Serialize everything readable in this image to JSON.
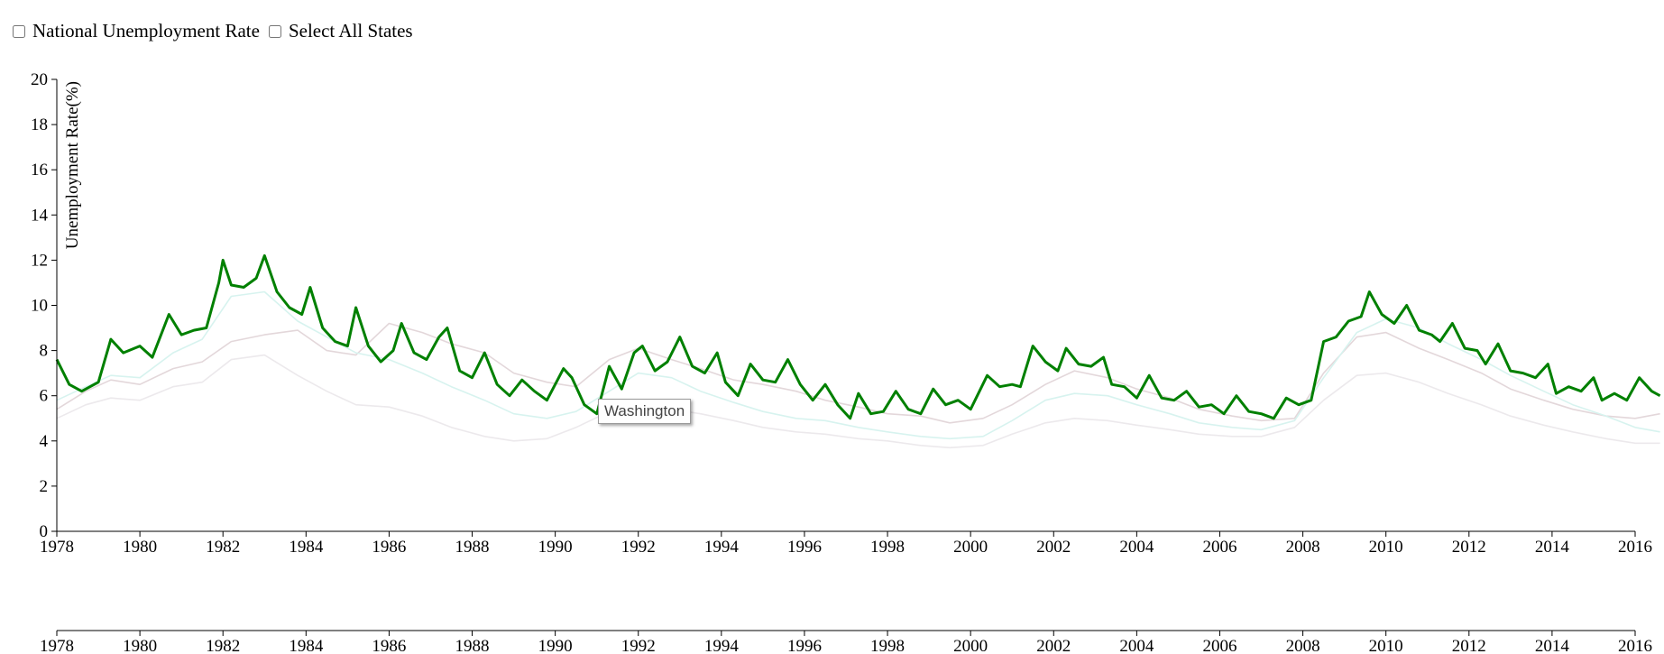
{
  "controls": {
    "national_label": "National Unemployment Rate",
    "select_all_label": "Select All States"
  },
  "tooltip": {
    "text": "Washington"
  },
  "chart_data": {
    "type": "line",
    "title": "",
    "ylabel": "Unemployment Rate(%)",
    "xlabel": "",
    "xlim": [
      1978,
      2016
    ],
    "ylim": [
      0,
      20
    ],
    "x_ticks": [
      1978,
      1980,
      1982,
      1984,
      1986,
      1988,
      1990,
      1992,
      1994,
      1996,
      1998,
      2000,
      2002,
      2004,
      2006,
      2008,
      2010,
      2012,
      2014,
      2016
    ],
    "y_ticks": [
      0,
      2,
      4,
      6,
      8,
      10,
      12,
      14,
      16,
      18,
      20
    ],
    "grid": false,
    "legend": "none",
    "highlighted_series": "Washington",
    "series": [
      {
        "name": "Washington",
        "color": "#008000",
        "points": [
          [
            1978.0,
            7.6
          ],
          [
            1978.3,
            6.5
          ],
          [
            1978.6,
            6.2
          ],
          [
            1979.0,
            6.6
          ],
          [
            1979.3,
            8.5
          ],
          [
            1979.6,
            7.9
          ],
          [
            1980.0,
            8.2
          ],
          [
            1980.3,
            7.7
          ],
          [
            1980.7,
            9.6
          ],
          [
            1981.0,
            8.7
          ],
          [
            1981.3,
            8.9
          ],
          [
            1981.6,
            9.0
          ],
          [
            1981.9,
            11.0
          ],
          [
            1982.0,
            12.0
          ],
          [
            1982.2,
            10.9
          ],
          [
            1982.5,
            10.8
          ],
          [
            1982.8,
            11.2
          ],
          [
            1983.0,
            12.2
          ],
          [
            1983.3,
            10.6
          ],
          [
            1983.6,
            9.9
          ],
          [
            1983.9,
            9.6
          ],
          [
            1984.1,
            10.8
          ],
          [
            1984.4,
            9.0
          ],
          [
            1984.7,
            8.4
          ],
          [
            1985.0,
            8.2
          ],
          [
            1985.2,
            9.9
          ],
          [
            1985.5,
            8.2
          ],
          [
            1985.8,
            7.5
          ],
          [
            1986.1,
            8.0
          ],
          [
            1986.3,
            9.2
          ],
          [
            1986.6,
            7.9
          ],
          [
            1986.9,
            7.6
          ],
          [
            1987.2,
            8.6
          ],
          [
            1987.4,
            9.0
          ],
          [
            1987.7,
            7.1
          ],
          [
            1988.0,
            6.8
          ],
          [
            1988.3,
            7.9
          ],
          [
            1988.6,
            6.5
          ],
          [
            1988.9,
            6.0
          ],
          [
            1989.2,
            6.7
          ],
          [
            1989.5,
            6.2
          ],
          [
            1989.8,
            5.8
          ],
          [
            1990.2,
            7.2
          ],
          [
            1990.4,
            6.8
          ],
          [
            1990.7,
            5.6
          ],
          [
            1991.0,
            5.2
          ],
          [
            1991.3,
            7.3
          ],
          [
            1991.6,
            6.3
          ],
          [
            1991.9,
            7.9
          ],
          [
            1992.1,
            8.2
          ],
          [
            1992.4,
            7.1
          ],
          [
            1992.7,
            7.5
          ],
          [
            1993.0,
            8.6
          ],
          [
            1993.3,
            7.3
          ],
          [
            1993.6,
            7.0
          ],
          [
            1993.9,
            7.9
          ],
          [
            1994.1,
            6.6
          ],
          [
            1994.4,
            6.0
          ],
          [
            1994.7,
            7.4
          ],
          [
            1995.0,
            6.7
          ],
          [
            1995.3,
            6.6
          ],
          [
            1995.6,
            7.6
          ],
          [
            1995.9,
            6.5
          ],
          [
            1996.2,
            5.8
          ],
          [
            1996.5,
            6.5
          ],
          [
            1996.8,
            5.6
          ],
          [
            1997.1,
            5.0
          ],
          [
            1997.3,
            6.1
          ],
          [
            1997.6,
            5.2
          ],
          [
            1997.9,
            5.3
          ],
          [
            1998.2,
            6.2
          ],
          [
            1998.5,
            5.4
          ],
          [
            1998.8,
            5.2
          ],
          [
            1999.1,
            6.3
          ],
          [
            1999.4,
            5.6
          ],
          [
            1999.7,
            5.8
          ],
          [
            2000.0,
            5.4
          ],
          [
            2000.4,
            6.9
          ],
          [
            2000.7,
            6.4
          ],
          [
            2001.0,
            6.5
          ],
          [
            2001.2,
            6.4
          ],
          [
            2001.5,
            8.2
          ],
          [
            2001.8,
            7.5
          ],
          [
            2002.1,
            7.1
          ],
          [
            2002.3,
            8.1
          ],
          [
            2002.6,
            7.4
          ],
          [
            2002.9,
            7.3
          ],
          [
            2003.2,
            7.7
          ],
          [
            2003.4,
            6.5
          ],
          [
            2003.7,
            6.4
          ],
          [
            2004.0,
            5.9
          ],
          [
            2004.3,
            6.9
          ],
          [
            2004.6,
            5.9
          ],
          [
            2004.9,
            5.8
          ],
          [
            2005.2,
            6.2
          ],
          [
            2005.5,
            5.5
          ],
          [
            2005.8,
            5.6
          ],
          [
            2006.1,
            5.2
          ],
          [
            2006.4,
            6.0
          ],
          [
            2006.7,
            5.3
          ],
          [
            2007.0,
            5.2
          ],
          [
            2007.3,
            5.0
          ],
          [
            2007.6,
            5.9
          ],
          [
            2007.9,
            5.6
          ],
          [
            2008.2,
            5.8
          ],
          [
            2008.5,
            8.4
          ],
          [
            2008.8,
            8.6
          ],
          [
            2009.1,
            9.3
          ],
          [
            2009.4,
            9.5
          ],
          [
            2009.6,
            10.6
          ],
          [
            2009.9,
            9.6
          ],
          [
            2010.2,
            9.2
          ],
          [
            2010.5,
            10.0
          ],
          [
            2010.8,
            8.9
          ],
          [
            2011.1,
            8.7
          ],
          [
            2011.3,
            8.4
          ],
          [
            2011.6,
            9.2
          ],
          [
            2011.9,
            8.1
          ],
          [
            2012.2,
            8.0
          ],
          [
            2012.4,
            7.4
          ],
          [
            2012.7,
            8.3
          ],
          [
            2013.0,
            7.1
          ],
          [
            2013.3,
            7.0
          ],
          [
            2013.6,
            6.8
          ],
          [
            2013.9,
            7.4
          ],
          [
            2014.1,
            6.1
          ],
          [
            2014.4,
            6.4
          ],
          [
            2014.7,
            6.2
          ],
          [
            2015.0,
            6.8
          ],
          [
            2015.2,
            5.8
          ],
          [
            2015.5,
            6.1
          ],
          [
            2015.8,
            5.8
          ],
          [
            2016.1,
            6.8
          ],
          [
            2016.4,
            6.2
          ],
          [
            2016.6,
            6.0
          ]
        ]
      },
      {
        "name": "",
        "color": "#e3d7da",
        "points": [
          [
            1978.0,
            5.4
          ],
          [
            1978.7,
            6.2
          ],
          [
            1979.3,
            6.7
          ],
          [
            1980.0,
            6.5
          ],
          [
            1980.8,
            7.2
          ],
          [
            1981.5,
            7.5
          ],
          [
            1982.2,
            8.4
          ],
          [
            1983.0,
            8.7
          ],
          [
            1983.8,
            8.9
          ],
          [
            1984.5,
            8.0
          ],
          [
            1985.2,
            7.8
          ],
          [
            1986.0,
            9.2
          ],
          [
            1986.8,
            8.8
          ],
          [
            1987.5,
            8.3
          ],
          [
            1988.3,
            7.9
          ],
          [
            1989.0,
            7.0
          ],
          [
            1989.8,
            6.6
          ],
          [
            1990.5,
            6.4
          ],
          [
            1991.3,
            7.6
          ],
          [
            1992.0,
            8.1
          ],
          [
            1992.8,
            7.6
          ],
          [
            1993.5,
            7.2
          ],
          [
            1994.3,
            6.7
          ],
          [
            1995.0,
            6.5
          ],
          [
            1995.8,
            6.2
          ],
          [
            1996.5,
            5.8
          ],
          [
            1997.3,
            5.5
          ],
          [
            1998.0,
            5.2
          ],
          [
            1998.8,
            5.1
          ],
          [
            1999.5,
            4.8
          ],
          [
            2000.3,
            5.0
          ],
          [
            2001.0,
            5.6
          ],
          [
            2001.8,
            6.5
          ],
          [
            2002.5,
            7.1
          ],
          [
            2003.3,
            6.8
          ],
          [
            2004.0,
            6.3
          ],
          [
            2004.8,
            5.9
          ],
          [
            2005.5,
            5.4
          ],
          [
            2006.3,
            5.1
          ],
          [
            2007.0,
            4.9
          ],
          [
            2007.8,
            5.0
          ],
          [
            2008.5,
            7.0
          ],
          [
            2009.3,
            8.6
          ],
          [
            2010.0,
            8.8
          ],
          [
            2010.8,
            8.1
          ],
          [
            2011.5,
            7.6
          ],
          [
            2012.3,
            7.0
          ],
          [
            2013.0,
            6.3
          ],
          [
            2013.8,
            5.8
          ],
          [
            2014.5,
            5.4
          ],
          [
            2015.3,
            5.1
          ],
          [
            2016.0,
            5.0
          ],
          [
            2016.6,
            5.2
          ]
        ]
      },
      {
        "name": "",
        "color": "#d7f3ef",
        "points": [
          [
            1978.0,
            5.8
          ],
          [
            1978.7,
            6.4
          ],
          [
            1979.3,
            6.9
          ],
          [
            1980.0,
            6.8
          ],
          [
            1980.8,
            7.9
          ],
          [
            1981.5,
            8.5
          ],
          [
            1982.2,
            10.4
          ],
          [
            1983.0,
            10.6
          ],
          [
            1983.8,
            9.3
          ],
          [
            1984.5,
            8.6
          ],
          [
            1985.2,
            7.9
          ],
          [
            1986.0,
            7.6
          ],
          [
            1986.8,
            7.0
          ],
          [
            1987.5,
            6.4
          ],
          [
            1988.3,
            5.8
          ],
          [
            1989.0,
            5.2
          ],
          [
            1989.8,
            5.0
          ],
          [
            1990.5,
            5.3
          ],
          [
            1991.3,
            6.2
          ],
          [
            1992.0,
            7.0
          ],
          [
            1992.8,
            6.8
          ],
          [
            1993.5,
            6.2
          ],
          [
            1994.3,
            5.7
          ],
          [
            1995.0,
            5.3
          ],
          [
            1995.8,
            5.0
          ],
          [
            1996.5,
            4.9
          ],
          [
            1997.3,
            4.6
          ],
          [
            1998.0,
            4.4
          ],
          [
            1998.8,
            4.2
          ],
          [
            1999.5,
            4.1
          ],
          [
            2000.3,
            4.2
          ],
          [
            2001.0,
            4.9
          ],
          [
            2001.8,
            5.8
          ],
          [
            2002.5,
            6.1
          ],
          [
            2003.3,
            6.0
          ],
          [
            2004.0,
            5.6
          ],
          [
            2004.8,
            5.2
          ],
          [
            2005.5,
            4.8
          ],
          [
            2006.3,
            4.6
          ],
          [
            2007.0,
            4.5
          ],
          [
            2007.8,
            4.9
          ],
          [
            2008.5,
            6.8
          ],
          [
            2009.3,
            8.8
          ],
          [
            2010.0,
            9.4
          ],
          [
            2010.8,
            9.0
          ],
          [
            2011.5,
            8.3
          ],
          [
            2012.3,
            7.6
          ],
          [
            2013.0,
            6.9
          ],
          [
            2013.8,
            6.2
          ],
          [
            2014.5,
            5.6
          ],
          [
            2015.3,
            5.1
          ],
          [
            2016.0,
            4.6
          ],
          [
            2016.6,
            4.4
          ]
        ]
      },
      {
        "name": "",
        "color": "#ece9ec",
        "points": [
          [
            1978.0,
            5.0
          ],
          [
            1978.7,
            5.6
          ],
          [
            1979.3,
            5.9
          ],
          [
            1980.0,
            5.8
          ],
          [
            1980.8,
            6.4
          ],
          [
            1981.5,
            6.6
          ],
          [
            1982.2,
            7.6
          ],
          [
            1983.0,
            7.8
          ],
          [
            1983.8,
            6.9
          ],
          [
            1984.5,
            6.2
          ],
          [
            1985.2,
            5.6
          ],
          [
            1986.0,
            5.5
          ],
          [
            1986.8,
            5.1
          ],
          [
            1987.5,
            4.6
          ],
          [
            1988.3,
            4.2
          ],
          [
            1989.0,
            4.0
          ],
          [
            1989.8,
            4.1
          ],
          [
            1990.5,
            4.6
          ],
          [
            1991.3,
            5.3
          ],
          [
            1992.0,
            5.6
          ],
          [
            1992.8,
            5.4
          ],
          [
            1993.5,
            5.2
          ],
          [
            1994.3,
            4.9
          ],
          [
            1995.0,
            4.6
          ],
          [
            1995.8,
            4.4
          ],
          [
            1996.5,
            4.3
          ],
          [
            1997.3,
            4.1
          ],
          [
            1998.0,
            4.0
          ],
          [
            1998.8,
            3.8
          ],
          [
            1999.5,
            3.7
          ],
          [
            2000.3,
            3.8
          ],
          [
            2001.0,
            4.3
          ],
          [
            2001.8,
            4.8
          ],
          [
            2002.5,
            5.0
          ],
          [
            2003.3,
            4.9
          ],
          [
            2004.0,
            4.7
          ],
          [
            2004.8,
            4.5
          ],
          [
            2005.5,
            4.3
          ],
          [
            2006.3,
            4.2
          ],
          [
            2007.0,
            4.2
          ],
          [
            2007.8,
            4.6
          ],
          [
            2008.5,
            5.8
          ],
          [
            2009.3,
            6.9
          ],
          [
            2010.0,
            7.0
          ],
          [
            2010.8,
            6.6
          ],
          [
            2011.5,
            6.1
          ],
          [
            2012.3,
            5.6
          ],
          [
            2013.0,
            5.1
          ],
          [
            2013.8,
            4.7
          ],
          [
            2014.5,
            4.4
          ],
          [
            2015.3,
            4.1
          ],
          [
            2016.0,
            3.9
          ],
          [
            2016.6,
            3.9
          ]
        ]
      }
    ]
  }
}
